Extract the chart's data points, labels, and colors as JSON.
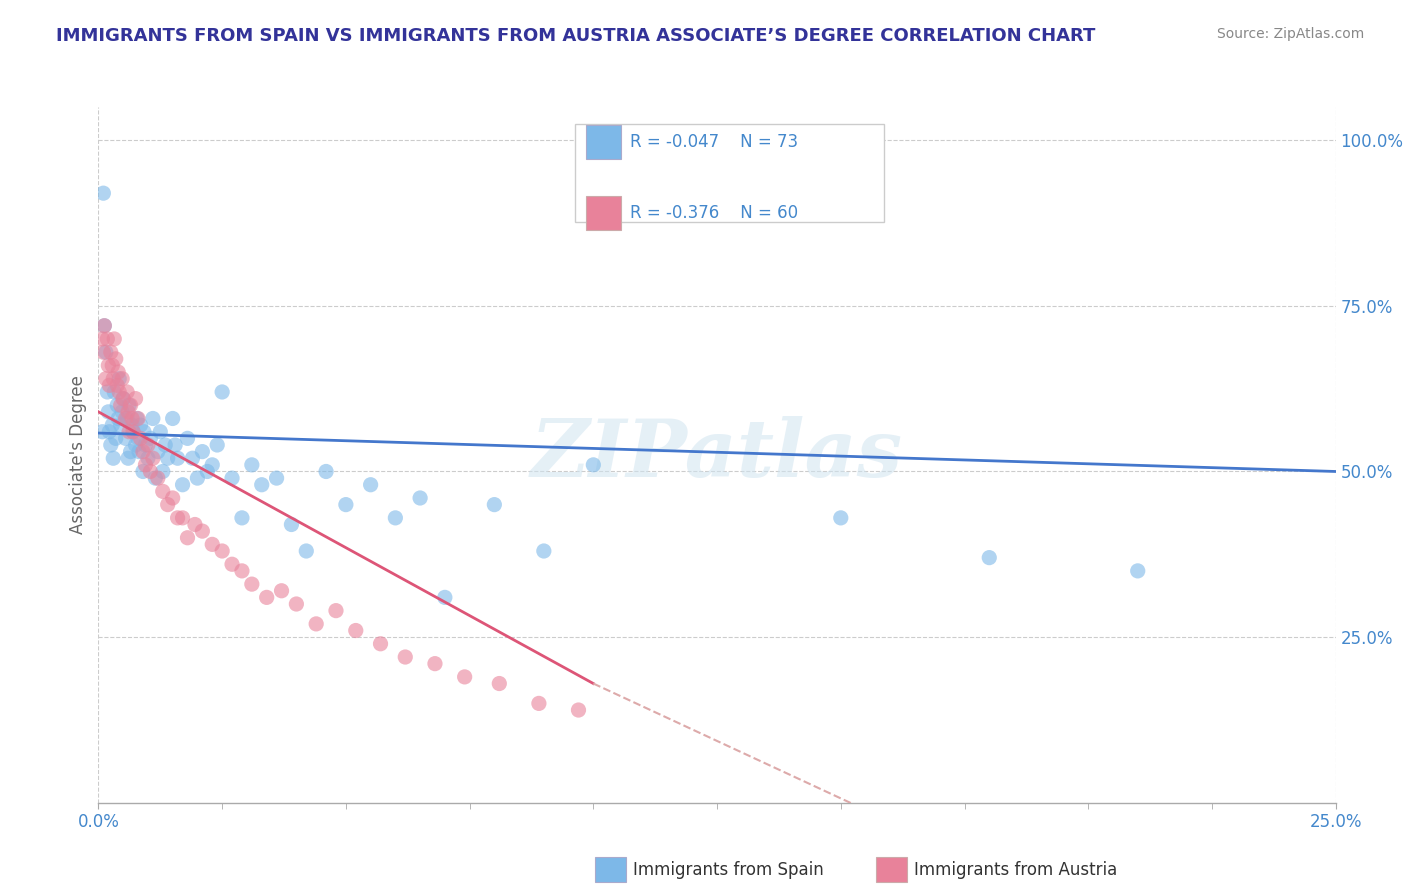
{
  "title": "IMMIGRANTS FROM SPAIN VS IMMIGRANTS FROM AUSTRIA ASSOCIATE’S DEGREE CORRELATION CHART",
  "source": "Source: ZipAtlas.com",
  "ylabel": "Associate's Degree",
  "legend_r_spain": "R = -0.047",
  "legend_n_spain": "N = 73",
  "legend_r_austria": "R = -0.376",
  "legend_n_austria": "N = 60",
  "legend_label_spain": "Immigrants from Spain",
  "legend_label_austria": "Immigrants from Austria",
  "spain_color": "#7db8e8",
  "austria_color": "#e8829a",
  "spain_line_color": "#4477cc",
  "austria_line_color": "#dd5577",
  "series_spain_x": [
    0.0008,
    0.001,
    0.0012,
    0.0015,
    0.0018,
    0.002,
    0.0022,
    0.0025,
    0.0028,
    0.003,
    0.0032,
    0.0035,
    0.0038,
    0.004,
    0.0042,
    0.0045,
    0.0048,
    0.005,
    0.0055,
    0.0058,
    0.006,
    0.0062,
    0.0065,
    0.0068,
    0.007,
    0.0075,
    0.0078,
    0.008,
    0.0082,
    0.0085,
    0.009,
    0.0092,
    0.0095,
    0.01,
    0.0105,
    0.011,
    0.0115,
    0.012,
    0.0125,
    0.013,
    0.0135,
    0.014,
    0.015,
    0.0155,
    0.016,
    0.017,
    0.018,
    0.019,
    0.02,
    0.021,
    0.022,
    0.023,
    0.024,
    0.025,
    0.027,
    0.029,
    0.031,
    0.033,
    0.036,
    0.039,
    0.042,
    0.046,
    0.05,
    0.055,
    0.06,
    0.065,
    0.07,
    0.08,
    0.09,
    0.1,
    0.15,
    0.18,
    0.21
  ],
  "series_spain_y": [
    0.56,
    0.92,
    0.72,
    0.68,
    0.62,
    0.59,
    0.56,
    0.54,
    0.57,
    0.52,
    0.62,
    0.55,
    0.6,
    0.58,
    0.64,
    0.57,
    0.59,
    0.61,
    0.55,
    0.58,
    0.52,
    0.6,
    0.53,
    0.57,
    0.56,
    0.54,
    0.58,
    0.55,
    0.53,
    0.57,
    0.5,
    0.56,
    0.54,
    0.52,
    0.55,
    0.58,
    0.49,
    0.53,
    0.56,
    0.5,
    0.54,
    0.52,
    0.58,
    0.54,
    0.52,
    0.48,
    0.55,
    0.52,
    0.49,
    0.53,
    0.5,
    0.51,
    0.54,
    0.62,
    0.49,
    0.43,
    0.51,
    0.48,
    0.49,
    0.42,
    0.38,
    0.5,
    0.45,
    0.48,
    0.43,
    0.46,
    0.31,
    0.45,
    0.38,
    0.51,
    0.43,
    0.37,
    0.35
  ],
  "series_austria_x": [
    0.0008,
    0.001,
    0.0012,
    0.0015,
    0.0018,
    0.002,
    0.0022,
    0.0025,
    0.0028,
    0.003,
    0.0032,
    0.0035,
    0.0038,
    0.004,
    0.0042,
    0.0045,
    0.0048,
    0.005,
    0.0055,
    0.0058,
    0.006,
    0.0062,
    0.0065,
    0.0068,
    0.007,
    0.0075,
    0.008,
    0.0085,
    0.009,
    0.0095,
    0.01,
    0.0105,
    0.011,
    0.012,
    0.013,
    0.014,
    0.015,
    0.016,
    0.017,
    0.018,
    0.0195,
    0.021,
    0.023,
    0.025,
    0.027,
    0.029,
    0.031,
    0.034,
    0.037,
    0.04,
    0.044,
    0.048,
    0.052,
    0.057,
    0.062,
    0.068,
    0.074,
    0.081,
    0.089,
    0.097
  ],
  "series_austria_y": [
    0.7,
    0.68,
    0.72,
    0.64,
    0.7,
    0.66,
    0.63,
    0.68,
    0.66,
    0.64,
    0.7,
    0.67,
    0.63,
    0.65,
    0.62,
    0.6,
    0.64,
    0.61,
    0.58,
    0.62,
    0.59,
    0.56,
    0.6,
    0.58,
    0.56,
    0.61,
    0.58,
    0.55,
    0.53,
    0.51,
    0.54,
    0.5,
    0.52,
    0.49,
    0.47,
    0.45,
    0.46,
    0.43,
    0.43,
    0.4,
    0.42,
    0.41,
    0.39,
    0.38,
    0.36,
    0.35,
    0.33,
    0.31,
    0.32,
    0.3,
    0.27,
    0.29,
    0.26,
    0.24,
    0.22,
    0.21,
    0.19,
    0.18,
    0.15,
    0.14
  ],
  "xlim": [
    0.0,
    0.25
  ],
  "ylim": [
    0.0,
    1.05
  ],
  "ytick_positions": [
    0.25,
    0.5,
    0.75,
    1.0
  ],
  "ytick_labels": [
    "25.0%",
    "50.0%",
    "75.0%",
    "100.0%"
  ],
  "xtick_positions": [
    0.0,
    0.25
  ],
  "xtick_labels": [
    "0.0%",
    "25.0%"
  ],
  "watermark": "ZIPatlas",
  "background_color": "#ffffff",
  "grid_color": "#cccccc",
  "title_color": "#333399",
  "source_color": "#888888",
  "axis_label_color": "#666666",
  "tick_color": "#4488cc"
}
